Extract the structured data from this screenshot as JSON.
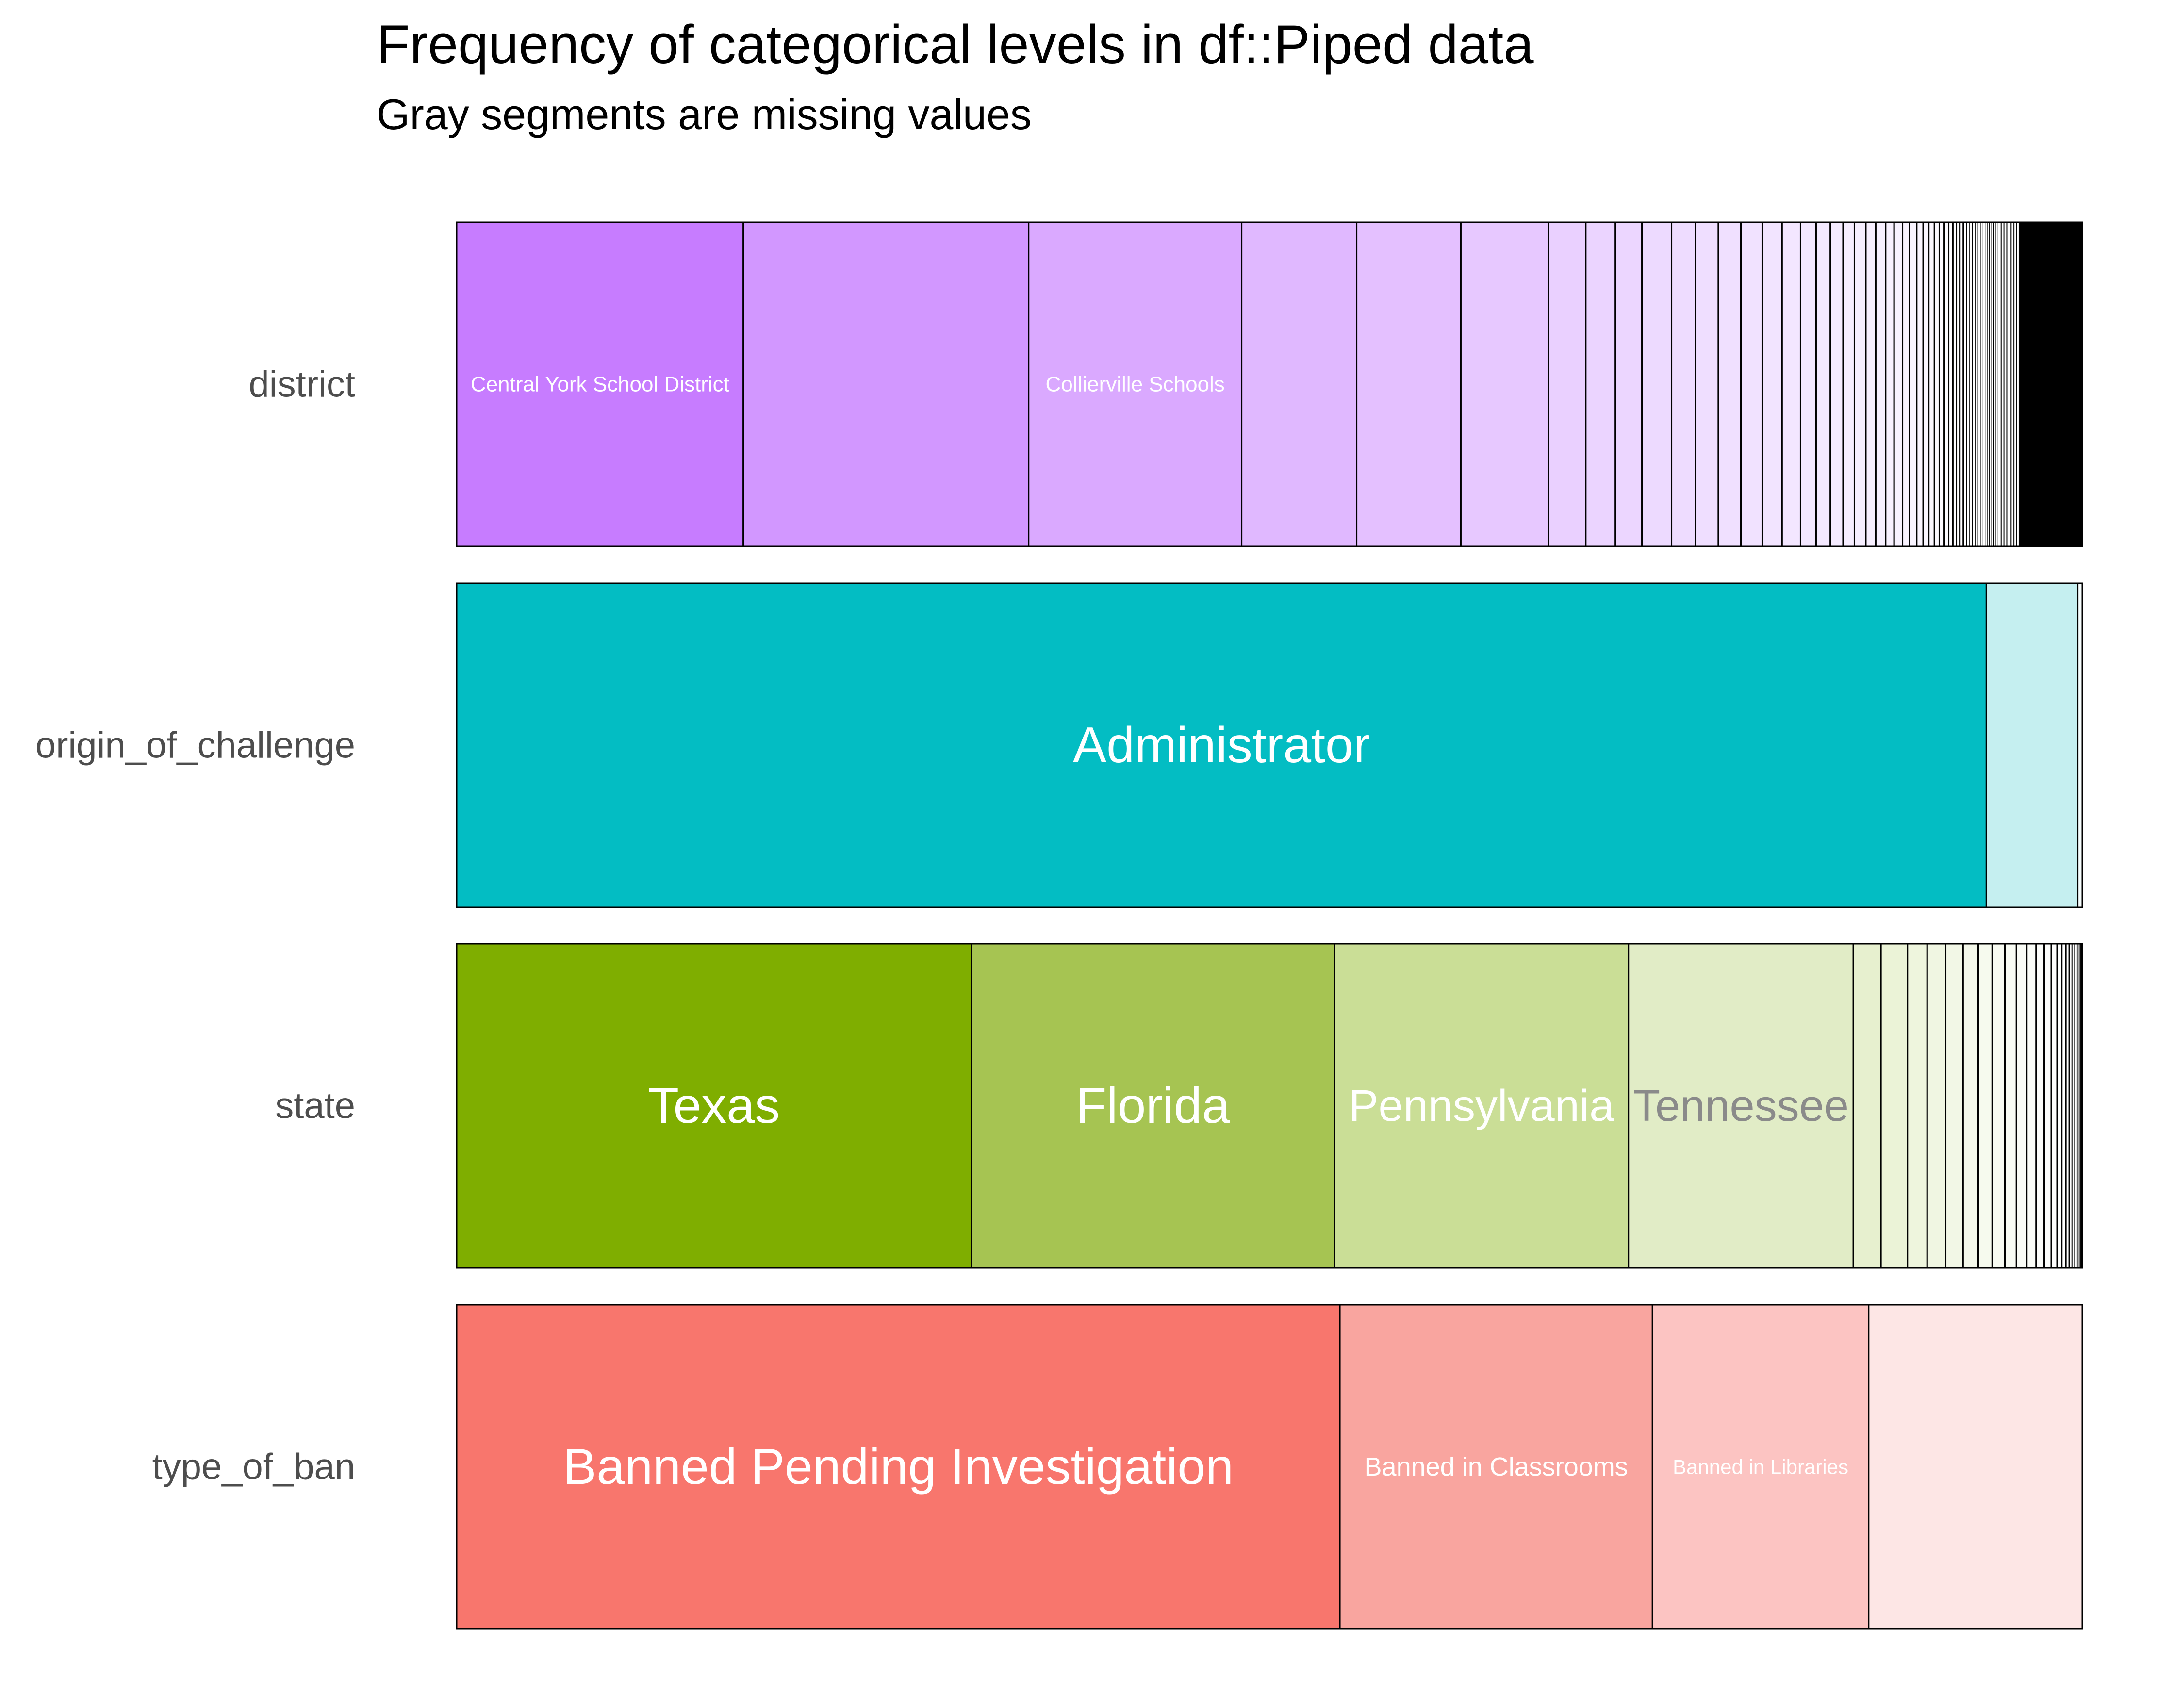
{
  "chart_data": {
    "type": "bar",
    "orientation": "horizontal",
    "stacked": true,
    "normalized": true,
    "title": "Frequency of categorical levels in df::Piped data",
    "subtitle": "Gray segments are missing values",
    "xlabel": "",
    "ylabel": "",
    "xlim": [
      0,
      1
    ],
    "grid": false,
    "legend": "none",
    "categories": [
      "district",
      "origin_of_challenge",
      "state",
      "type_of_ban"
    ],
    "series": [
      {
        "name": "district",
        "color": "#c77cff",
        "segments": [
          {
            "label": "Central York School District",
            "value": 0.1735,
            "fill": "#c77cff",
            "text_color": "#ffffff",
            "font": 44
          },
          {
            "label": "",
            "value": 0.1727,
            "fill": "#d297ff"
          },
          {
            "label": "Collierville Schools",
            "value": 0.1289,
            "fill": "#daa9ff",
            "text_color": "#ffffff",
            "font": 44
          },
          {
            "label": "",
            "value": 0.0696,
            "fill": "#e0b8ff"
          },
          {
            "label": "",
            "value": 0.0631,
            "fill": "#e4c0ff"
          },
          {
            "label": "",
            "value": 0.0529,
            "fill": "#e7c8ff"
          },
          {
            "label": "",
            "value": 0.0227,
            "fill": "#ead0ff"
          },
          {
            "label": "",
            "value": 0.0179,
            "fill": "#ebd4ff"
          },
          {
            "label": "",
            "value": 0.0161,
            "fill": "#ecd6ff"
          },
          {
            "label": "",
            "value": 0.0179,
            "fill": "#eddaff"
          },
          {
            "label": "",
            "value": 0.0146,
            "fill": "#eedcff"
          },
          {
            "label": "",
            "value": 0.0137,
            "fill": "#efdeff"
          },
          {
            "label": "",
            "value": 0.0137,
            "fill": "#f0e0ff"
          },
          {
            "label": "",
            "value": 0.0129,
            "fill": "#f1e2ff"
          },
          {
            "label": "",
            "value": 0.012,
            "fill": "#f2e4ff"
          },
          {
            "label": "",
            "value": 0.0112,
            "fill": "#f3e6ff"
          },
          {
            "label": "",
            "value": 0.0094,
            "fill": "#f3e7ff"
          },
          {
            "label": "",
            "value": 0.0086,
            "fill": "#f4e9ff"
          },
          {
            "label": "",
            "value": 0.0077,
            "fill": "#f5ebff"
          },
          {
            "label": "",
            "value": 0.0069,
            "fill": "#f6edff"
          },
          {
            "label": "",
            "value": 0.0069,
            "fill": "#f6eeff"
          },
          {
            "label": "",
            "value": 0.006,
            "fill": "#f7efff"
          },
          {
            "label": "",
            "value": 0.006,
            "fill": "#f7f0ff"
          },
          {
            "label": "",
            "value": 0.0051,
            "fill": "#f8f1ff"
          },
          {
            "label": "",
            "value": 0.0051,
            "fill": "#f8f2ff"
          },
          {
            "label": "",
            "value": 0.0043,
            "fill": "#f9f3ff"
          },
          {
            "label": "",
            "value": 0.0043,
            "fill": "#f9f4ff"
          },
          {
            "label": "",
            "value": 0.0039,
            "fill": "#faf5ff"
          },
          {
            "label": "",
            "value": 0.0034,
            "fill": "#faf6ff"
          },
          {
            "label": "",
            "value": 0.0034,
            "fill": "#fbf7ff"
          },
          {
            "label": "",
            "value": 0.003,
            "fill": "#fbf8ff"
          },
          {
            "label": "",
            "value": 0.003,
            "fill": "#fcf9ff"
          },
          {
            "label": "",
            "value": 0.0026,
            "fill": "#fcfaff"
          },
          {
            "label": "",
            "value": 0.0026,
            "fill": "#fdfbff"
          },
          {
            "label": "",
            "value": 0.0021,
            "fill": "#fdfcff"
          },
          {
            "label": "",
            "value": 0.0021,
            "fill": "#fefdff"
          },
          {
            "label": "",
            "value": 0.0021,
            "fill": "#fefdff"
          },
          {
            "label": "",
            "value": 0.0021,
            "fill": "#fefeff"
          },
          {
            "label": "",
            "value": 0.0017,
            "fill": "#fefeff"
          },
          {
            "label": "",
            "value": 0.0017,
            "fill": "#ffffff"
          },
          {
            "label": "",
            "value": 0.0017,
            "fill": "#ffffff"
          },
          {
            "label": "",
            "value": 0.0017,
            "fill": "#ffffff"
          },
          {
            "label": "",
            "value": 0.0017,
            "fill": "#ffffff"
          },
          {
            "label": "",
            "value": 0.0013,
            "fill": "#ffffff"
          },
          {
            "label": "",
            "value": 0.0013,
            "fill": "#ffffff"
          },
          {
            "label": "",
            "value": 0.0013,
            "fill": "#ffffff"
          },
          {
            "label": "",
            "value": 0.0013,
            "fill": "#ffffff"
          },
          {
            "label": "",
            "value": 0.0013,
            "fill": "#ffffff"
          },
          {
            "label": "",
            "value": 0.0013,
            "fill": "#ffffff"
          },
          {
            "label": "",
            "value": 0.0013,
            "fill": "#ffffff"
          },
          {
            "label": "",
            "value": 0.0013,
            "fill": "#ffffff"
          },
          {
            "label": "",
            "value": 0.0013,
            "fill": "#ffffff"
          },
          {
            "label": "",
            "value": 0.0009,
            "fill": "#ffffff"
          },
          {
            "label": "",
            "value": 0.0009,
            "fill": "#ffffff"
          },
          {
            "label": "",
            "value": 0.0009,
            "fill": "#ffffff"
          },
          {
            "label": "",
            "value": 0.0009,
            "fill": "#ffffff"
          },
          {
            "label": "",
            "value": 0.0009,
            "fill": "#ffffff"
          },
          {
            "label": "",
            "value": 0.0009,
            "fill": "#ffffff"
          },
          {
            "label": "",
            "value": 0.0009,
            "fill": "#ffffff"
          },
          {
            "label": "",
            "value": 0.0009,
            "fill": "#ffffff"
          },
          {
            "label": "",
            "value": 0.0009,
            "fill": "#ffffff"
          },
          {
            "label": "",
            "value": 0.0009,
            "fill": "#ffffff"
          },
          {
            "label": "",
            "value": 0.0009,
            "fill": "#ffffff"
          },
          {
            "label": "",
            "value": 0.0009,
            "fill": "#ffffff"
          },
          {
            "label": "",
            "value": 0.0009,
            "fill": "#ffffff"
          },
          {
            "label": "",
            "value": 0.005,
            "fill": "#000000"
          },
          {
            "label": "",
            "value": 0.033,
            "fill": "#000000"
          }
        ]
      },
      {
        "name": "origin_of_challenge",
        "color": "#00bfc4",
        "segments": [
          {
            "label": "Administrator",
            "value": 0.941,
            "fill": "#03bdc3",
            "text_color": "#ffffff",
            "font": 104
          },
          {
            "label": "",
            "value": 0.0562,
            "fill": "#c5eff0"
          },
          {
            "label": "",
            "value": 0.0028,
            "fill": "#f6fdfd"
          }
        ]
      },
      {
        "name": "state",
        "color": "#7cae00",
        "segments": [
          {
            "label": "Texas",
            "value": 0.3165,
            "fill": "#7fae00",
            "text_color": "#ffffff",
            "font": 104
          },
          {
            "label": "Florida",
            "value": 0.2233,
            "fill": "#a6c452",
            "text_color": "#ffffff",
            "font": 104
          },
          {
            "label": "Pennsylvania",
            "value": 0.1808,
            "fill": "#cade96",
            "text_color": "#ffffff",
            "font": 92
          },
          {
            "label": "Tennessee",
            "value": 0.1383,
            "fill": "#e1ecc6",
            "text_color": "#8a8a8a",
            "font": 92
          },
          {
            "label": "",
            "value": 0.017,
            "fill": "#e7f0cf"
          },
          {
            "label": "",
            "value": 0.0163,
            "fill": "#ebf3d7"
          },
          {
            "label": "",
            "value": 0.0121,
            "fill": "#eef5dd"
          },
          {
            "label": "",
            "value": 0.0114,
            "fill": "#f0f6e2"
          },
          {
            "label": "",
            "value": 0.0107,
            "fill": "#f2f7e6"
          },
          {
            "label": "",
            "value": 0.0093,
            "fill": "#f4f8ea"
          },
          {
            "label": "",
            "value": 0.0086,
            "fill": "#f6faee"
          },
          {
            "label": "",
            "value": 0.0078,
            "fill": "#f8fbf2"
          },
          {
            "label": "",
            "value": 0.0071,
            "fill": "#f9fcf4"
          },
          {
            "label": "",
            "value": 0.0064,
            "fill": "#fafcf6"
          },
          {
            "label": "",
            "value": 0.0057,
            "fill": "#fbfdf8"
          },
          {
            "label": "",
            "value": 0.005,
            "fill": "#fcfdfa"
          },
          {
            "label": "",
            "value": 0.0043,
            "fill": "#fdfefc"
          },
          {
            "label": "",
            "value": 0.0036,
            "fill": "#fefefd"
          },
          {
            "label": "",
            "value": 0.0029,
            "fill": "#fefffe"
          },
          {
            "label": "",
            "value": 0.0025,
            "fill": "#ffffff"
          },
          {
            "label": "",
            "value": 0.0021,
            "fill": "#ffffff"
          },
          {
            "label": "",
            "value": 0.0018,
            "fill": "#ffffff"
          },
          {
            "label": "",
            "value": 0.0014,
            "fill": "#ffffff"
          },
          {
            "label": "",
            "value": 0.0011,
            "fill": "#ffffff"
          },
          {
            "label": "",
            "value": 0.001,
            "fill": "#ffffff"
          },
          {
            "label": "",
            "value": 0.0007,
            "fill": "#ffffff"
          },
          {
            "label": "",
            "value": 0.0005,
            "fill": "#ffffff"
          },
          {
            "label": "",
            "value": 0.0005,
            "fill": "#ffffff"
          },
          {
            "label": "",
            "value": 0.0005,
            "fill": "#ffffff"
          },
          {
            "label": "",
            "value": 0.0005,
            "fill": "#ffffff"
          }
        ]
      },
      {
        "name": "type_of_ban",
        "color": "#f8766d",
        "segments": [
          {
            "label": "Banned Pending Investigation",
            "value": 0.5433,
            "fill": "#f8766d",
            "text_color": "#ffffff",
            "font": 104
          },
          {
            "label": "Banned in Classrooms",
            "value": 0.1923,
            "fill": "#f9a59f",
            "text_color": "#ffffff",
            "font": 54
          },
          {
            "label": "Banned in Libraries",
            "value": 0.133,
            "fill": "#fcc4c2",
            "text_color": "#ffffff",
            "font": 42
          },
          {
            "label": "",
            "value": 0.1314,
            "fill": "#fde6e5"
          }
        ]
      }
    ]
  }
}
